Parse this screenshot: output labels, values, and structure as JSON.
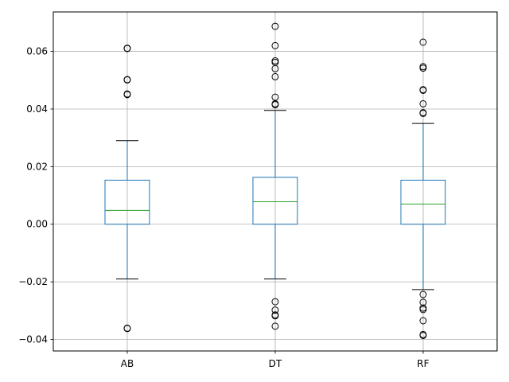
{
  "chart_data": {
    "type": "box",
    "title": "",
    "xlabel": "",
    "ylabel": "",
    "ylim": [
      -0.044,
      0.0737
    ],
    "grid": true,
    "y_ticks": [
      -0.04,
      -0.02,
      0.0,
      0.02,
      0.04,
      0.06
    ],
    "y_tick_labels": [
      "−0.04",
      "−0.02",
      "0.00",
      "0.02",
      "0.04",
      "0.06"
    ],
    "categories": [
      "AB",
      "DT",
      "RF"
    ],
    "boxes": [
      {
        "name": "AB",
        "whisker_low": -0.019,
        "q1": 0.0,
        "median": 0.0048,
        "q3": 0.0153,
        "whisker_high": 0.029,
        "outliers": [
          0.061,
          0.0611,
          0.0502,
          0.0501,
          0.0452,
          0.045,
          -0.0362,
          -0.0361
        ]
      },
      {
        "name": "DT",
        "whisker_low": -0.019,
        "q1": 0.0,
        "median": 0.0078,
        "q3": 0.0163,
        "whisker_high": 0.0395,
        "outliers": [
          0.0687,
          0.062,
          0.0567,
          0.0562,
          0.054,
          0.0512,
          0.0441,
          0.0418,
          0.0415,
          -0.0269,
          -0.0298,
          -0.0315,
          -0.0318,
          -0.0354
        ]
      },
      {
        "name": "RF",
        "whisker_low": -0.0227,
        "q1": 0.0,
        "median": 0.007,
        "q3": 0.0153,
        "whisker_high": 0.035,
        "outliers": [
          0.0632,
          0.0547,
          0.0542,
          0.0467,
          0.0465,
          0.0418,
          0.0387,
          0.0385,
          -0.0244,
          -0.0271,
          -0.0291,
          -0.0296,
          -0.0335,
          -0.0383,
          -0.0386
        ]
      }
    ],
    "colors": {
      "box": "#1f77b4",
      "median": "#2ca02c",
      "caps": "#000000",
      "outliers": "#000000",
      "grid": "#b0b0b0",
      "axes": "#000000"
    }
  }
}
